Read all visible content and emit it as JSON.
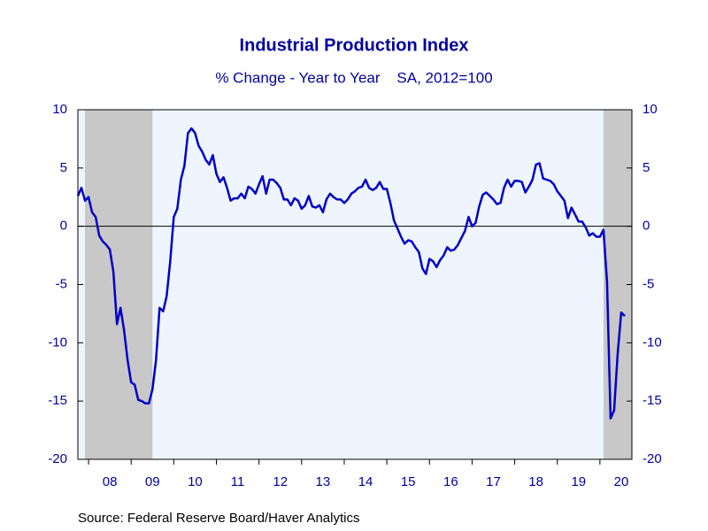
{
  "chart_data": {
    "type": "line",
    "title": "Industrial Production Index",
    "subtitle": "% Change - Year to Year    SA, 2012=100",
    "source": "Source:  Federal Reserve Board/Haver Analytics",
    "x": [
      2007.75,
      2007.833,
      2007.917,
      2008.0,
      2008.083,
      2008.167,
      2008.25,
      2008.333,
      2008.417,
      2008.5,
      2008.583,
      2008.667,
      2008.75,
      2008.833,
      2008.917,
      2009.0,
      2009.083,
      2009.167,
      2009.25,
      2009.333,
      2009.417,
      2009.5,
      2009.583,
      2009.667,
      2009.75,
      2009.833,
      2009.917,
      2010.0,
      2010.083,
      2010.167,
      2010.25,
      2010.333,
      2010.417,
      2010.5,
      2010.583,
      2010.667,
      2010.75,
      2010.833,
      2010.917,
      2011.0,
      2011.083,
      2011.167,
      2011.25,
      2011.333,
      2011.417,
      2011.5,
      2011.583,
      2011.667,
      2011.75,
      2011.833,
      2011.917,
      2012.0,
      2012.083,
      2012.167,
      2012.25,
      2012.333,
      2012.417,
      2012.5,
      2012.583,
      2012.667,
      2012.75,
      2012.833,
      2012.917,
      2013.0,
      2013.083,
      2013.167,
      2013.25,
      2013.333,
      2013.417,
      2013.5,
      2013.583,
      2013.667,
      2013.75,
      2013.833,
      2013.917,
      2014.0,
      2014.083,
      2014.167,
      2014.25,
      2014.333,
      2014.417,
      2014.5,
      2014.583,
      2014.667,
      2014.75,
      2014.833,
      2014.917,
      2015.0,
      2015.083,
      2015.167,
      2015.25,
      2015.333,
      2015.417,
      2015.5,
      2015.583,
      2015.667,
      2015.75,
      2015.833,
      2015.917,
      2016.0,
      2016.083,
      2016.167,
      2016.25,
      2016.333,
      2016.417,
      2016.5,
      2016.583,
      2016.667,
      2016.75,
      2016.833,
      2016.917,
      2017.0,
      2017.083,
      2017.167,
      2017.25,
      2017.333,
      2017.417,
      2017.5,
      2017.583,
      2017.667,
      2017.75,
      2017.833,
      2017.917,
      2018.0,
      2018.083,
      2018.167,
      2018.25,
      2018.333,
      2018.417,
      2018.5,
      2018.583,
      2018.667,
      2018.75,
      2018.833,
      2018.917,
      2019.0,
      2019.083,
      2019.167,
      2019.25,
      2019.333,
      2019.417,
      2019.5,
      2019.583,
      2019.667,
      2019.75,
      2019.833,
      2019.917,
      2020.0,
      2020.083,
      2020.167,
      2020.25,
      2020.333,
      2020.417,
      2020.5,
      2020.583
    ],
    "series": [
      {
        "name": "Industrial Production Index",
        "color": "#0000c8",
        "values": [
          2.6,
          3.3,
          2.2,
          2.5,
          1.2,
          0.8,
          -0.8,
          -1.3,
          -1.6,
          -2.0,
          -3.9,
          -8.4,
          -7.0,
          -8.9,
          -11.5,
          -13.4,
          -13.6,
          -14.9,
          -15.0,
          -15.2,
          -15.2,
          -14.0,
          -11.5,
          -7.0,
          -7.3,
          -6.0,
          -3.0,
          0.8,
          1.5,
          4.0,
          5.2,
          8.0,
          8.4,
          8.0,
          6.9,
          6.4,
          5.7,
          5.3,
          6.1,
          4.5,
          3.8,
          4.2,
          3.3,
          2.2,
          2.4,
          2.4,
          2.8,
          2.4,
          3.4,
          3.2,
          2.8,
          3.6,
          4.3,
          2.8,
          4.0,
          4.0,
          3.7,
          3.3,
          2.3,
          2.3,
          1.8,
          2.4,
          2.2,
          1.5,
          1.8,
          2.6,
          1.7,
          1.6,
          1.8,
          1.2,
          2.3,
          2.8,
          2.5,
          2.3,
          2.3,
          2.0,
          2.3,
          2.8,
          3.0,
          3.3,
          3.4,
          4.0,
          3.3,
          3.1,
          3.3,
          3.8,
          3.2,
          3.2,
          2.0,
          0.5,
          -0.2,
          -0.9,
          -1.5,
          -1.2,
          -1.3,
          -1.8,
          -2.2,
          -3.6,
          -4.1,
          -2.8,
          -3.0,
          -3.5,
          -2.9,
          -2.5,
          -1.8,
          -2.1,
          -2.0,
          -1.6,
          -1.0,
          -0.4,
          0.8,
          0.0,
          0.3,
          1.7,
          2.7,
          2.9,
          2.6,
          2.3,
          1.9,
          2.0,
          3.3,
          4.0,
          3.4,
          3.9,
          3.9,
          3.8,
          2.9,
          3.4,
          4.0,
          5.3,
          5.4,
          4.1,
          4.0,
          3.9,
          3.6,
          3.0,
          2.6,
          2.2,
          0.7,
          1.6,
          1.0,
          0.4,
          0.4,
          -0.1,
          -0.8,
          -0.6,
          -0.9,
          -0.9,
          -0.3,
          -4.8,
          -16.5,
          -15.8,
          -10.9,
          -7.4,
          -7.7
        ]
      }
    ],
    "xlim": [
      2007.75,
      2020.75
    ],
    "xticks": [
      {
        "value": 2008.5,
        "label": "08"
      },
      {
        "value": 2009.5,
        "label": "09"
      },
      {
        "value": 2010.5,
        "label": "10"
      },
      {
        "value": 2011.5,
        "label": "11"
      },
      {
        "value": 2012.5,
        "label": "12"
      },
      {
        "value": 2013.5,
        "label": "13"
      },
      {
        "value": 2014.5,
        "label": "14"
      },
      {
        "value": 2015.5,
        "label": "15"
      },
      {
        "value": 2016.5,
        "label": "16"
      },
      {
        "value": 2017.5,
        "label": "17"
      },
      {
        "value": 2018.5,
        "label": "18"
      },
      {
        "value": 2019.5,
        "label": "19"
      },
      {
        "value": 2020.5,
        "label": "20"
      }
    ],
    "year_boundaries": [
      2008,
      2009,
      2010,
      2011,
      2012,
      2013,
      2014,
      2015,
      2016,
      2017,
      2018,
      2019,
      2020
    ],
    "ylim": [
      -20,
      10
    ],
    "yticks": [
      10,
      5,
      0,
      -5,
      -10,
      -15,
      -20
    ],
    "y2lim": [
      -20,
      10
    ],
    "y2ticks": [
      10,
      5,
      0,
      -5,
      -10,
      -15,
      -20
    ],
    "recessions": [
      [
        2007.917,
        2009.5
      ],
      [
        2020.083,
        2020.75
      ]
    ],
    "recession_color": "#c8c8c8",
    "plot_background": "#eef5ff",
    "zero_line": 0,
    "grid": false
  }
}
